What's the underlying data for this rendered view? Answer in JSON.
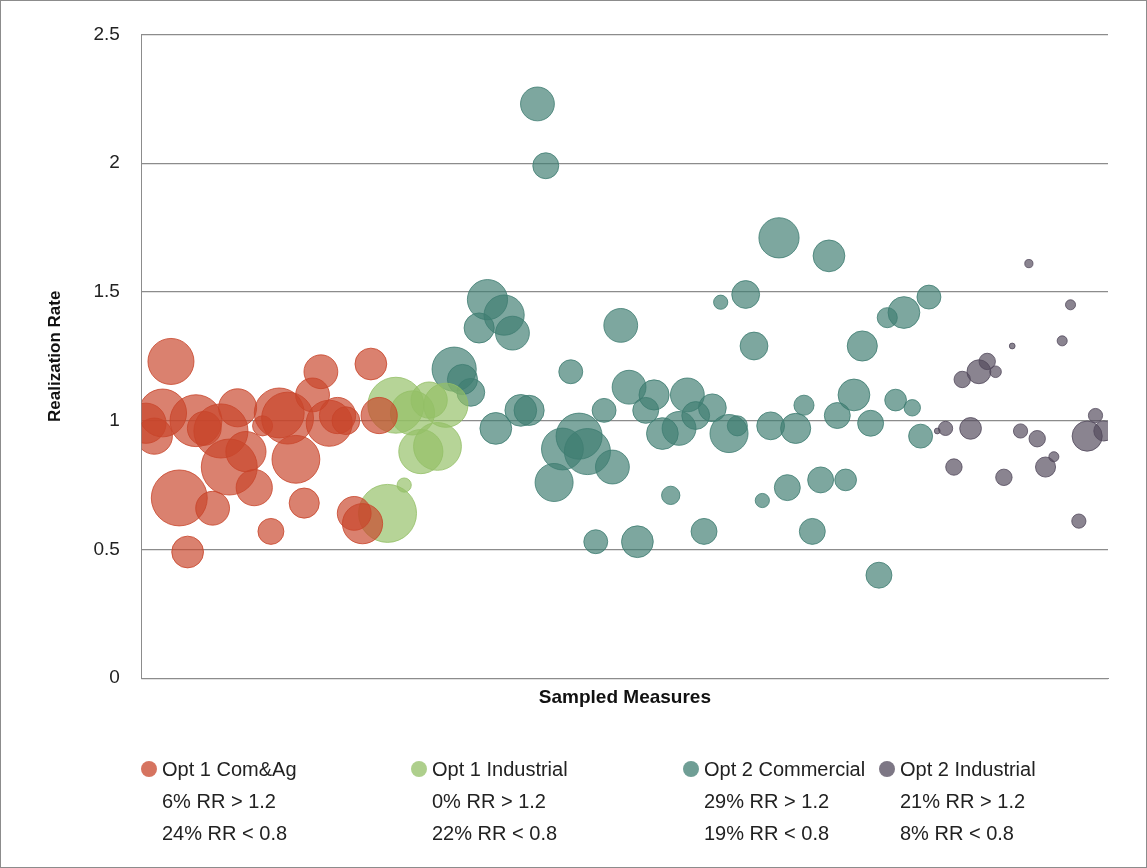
{
  "chart_data": {
    "type": "bubble",
    "xlabel": "Sampled Measures",
    "ylabel": "Realization Rate",
    "categories": [
      null,
      null,
      null,
      null,
      null,
      null,
      null,
      null,
      null,
      null,
      null,
      null,
      null,
      null,
      null,
      null,
      null,
      null,
      null,
      null,
      null,
      null,
      null,
      null,
      null,
      null,
      null,
      null,
      null,
      null,
      null,
      null,
      null,
      null,
      null,
      null,
      null,
      null,
      null,
      null,
      null,
      null,
      null,
      null,
      null,
      null,
      null,
      null,
      null,
      null,
      null,
      null,
      null,
      null,
      null,
      null,
      null,
      null,
      null,
      null,
      null,
      null,
      null,
      null,
      null,
      null,
      null,
      null,
      null,
      null,
      null,
      null,
      null,
      null,
      null,
      null,
      null,
      null,
      null,
      null,
      null,
      null,
      null,
      null,
      null,
      null,
      null,
      null,
      null,
      null,
      null,
      null,
      null,
      null,
      null,
      null,
      null,
      null,
      null,
      null,
      null,
      null,
      null,
      null,
      null,
      null,
      null,
      null,
      null,
      null,
      null,
      null,
      null,
      null,
      null,
      null
    ],
    "ylim": [
      0,
      2.5
    ],
    "yticks": [
      0,
      0.5,
      1,
      1.5,
      2,
      2.5
    ],
    "tick_labels": "y",
    "grid": "y",
    "legend": "bottom",
    "series": [
      {
        "name": "Opt 1 Com&Ag",
        "color": "#c8452b",
        "values": [
          0.99,
          0.94,
          1.03,
          1.23,
          0.7,
          0.49,
          1.0,
          0.97,
          0.66,
          0.96,
          0.82,
          1.05,
          0.88,
          0.74,
          0.98,
          0.57,
          1.03,
          1.01,
          0.85,
          0.68,
          1.1,
          1.19,
          0.99,
          1.02,
          1.0,
          0.64,
          0.6,
          1.22,
          1.02,
          null,
          null,
          null,
          null,
          null,
          null,
          null,
          null,
          null,
          null,
          null,
          null,
          null,
          null,
          null,
          null,
          null,
          null,
          null,
          null,
          null,
          null,
          null,
          null,
          null,
          null,
          null,
          null,
          null,
          null,
          null,
          null,
          null,
          null,
          null,
          null,
          null,
          null,
          null,
          null,
          null,
          null,
          null,
          null,
          null,
          null,
          null,
          null,
          null,
          null,
          null,
          null,
          null,
          null,
          null,
          null,
          null,
          null,
          null,
          null,
          null,
          null,
          null,
          null,
          null,
          null,
          null,
          null,
          null,
          null,
          null,
          null,
          null,
          null,
          null,
          null,
          null,
          null,
          null,
          null,
          null,
          null,
          null,
          null,
          null,
          null,
          null
        ],
        "sizes": [
          0.48,
          0.39,
          0.68,
          0.63,
          0.93,
          0.3,
          0.8,
          0.34,
          0.34,
          0.87,
          0.93,
          0.43,
          0.48,
          0.39,
          0.12,
          0.2,
          0.74,
          0.8,
          0.68,
          0.27,
          0.34,
          0.34,
          0.63,
          0.39,
          0.23,
          0.34,
          0.48,
          0.3,
          0.39,
          null,
          null,
          null,
          null,
          null,
          null,
          null,
          null,
          null,
          null,
          null,
          null,
          null,
          null,
          null,
          null,
          null,
          null,
          null,
          null,
          null,
          null,
          null,
          null,
          null,
          null,
          null,
          null,
          null,
          null,
          null,
          null,
          null,
          null,
          null,
          null,
          null,
          null,
          null,
          null,
          null,
          null,
          null,
          null,
          null,
          null,
          null,
          null,
          null,
          null,
          null,
          null,
          null,
          null,
          null,
          null,
          null,
          null,
          null,
          null,
          null,
          null,
          null,
          null,
          null,
          null,
          null,
          null,
          null,
          null,
          null,
          null,
          null,
          null,
          null,
          null,
          null,
          null,
          null,
          null,
          null,
          null,
          null,
          null,
          null,
          null,
          null
        ]
      },
      {
        "name": "Opt 1 Industrial",
        "color": "#93bf66",
        "values": [
          null,
          null,
          null,
          null,
          null,
          null,
          null,
          null,
          null,
          null,
          null,
          null,
          null,
          null,
          null,
          null,
          null,
          null,
          null,
          null,
          null,
          null,
          null,
          null,
          null,
          null,
          null,
          null,
          null,
          0.64,
          1.06,
          0.75,
          1.03,
          0.88,
          1.08,
          0.9,
          1.06,
          null,
          null,
          null,
          null,
          null,
          null,
          null,
          null,
          null,
          null,
          null,
          null,
          null,
          null,
          null,
          null,
          null,
          null,
          null,
          null,
          null,
          null,
          null,
          null,
          null,
          null,
          null,
          null,
          null,
          null,
          null,
          null,
          null,
          null,
          null,
          null,
          null,
          null,
          null,
          null,
          null,
          null,
          null,
          null,
          null,
          null,
          null,
          null,
          null,
          null,
          null,
          null,
          null,
          null,
          null,
          null,
          null,
          null,
          null,
          null,
          null,
          null,
          null,
          null,
          null,
          null,
          null,
          null,
          null,
          null,
          null,
          null,
          null,
          null,
          null,
          null,
          null,
          null,
          null
        ],
        "sizes": [
          null,
          null,
          null,
          null,
          null,
          null,
          null,
          null,
          null,
          null,
          null,
          null,
          null,
          null,
          null,
          null,
          null,
          null,
          null,
          null,
          null,
          null,
          null,
          null,
          null,
          null,
          null,
          null,
          null,
          1,
          0.93,
          0.06,
          0.58,
          0.58,
          0.39,
          0.68,
          0.58,
          null,
          null,
          null,
          null,
          null,
          null,
          null,
          null,
          null,
          null,
          null,
          null,
          null,
          null,
          null,
          null,
          null,
          null,
          null,
          null,
          null,
          null,
          null,
          null,
          null,
          null,
          null,
          null,
          null,
          null,
          null,
          null,
          null,
          null,
          null,
          null,
          null,
          null,
          null,
          null,
          null,
          null,
          null,
          null,
          null,
          null,
          null,
          null,
          null,
          null,
          null,
          null,
          null,
          null,
          null,
          null,
          null,
          null,
          null,
          null,
          null,
          null,
          null,
          null,
          null,
          null,
          null,
          null,
          null,
          null,
          null,
          null,
          null,
          null,
          null,
          null,
          null,
          null,
          null
        ]
      },
      {
        "name": "Opt 2 Commercial",
        "color": "#3f7d72",
        "values": [
          null,
          null,
          null,
          null,
          null,
          null,
          null,
          null,
          null,
          null,
          null,
          null,
          null,
          null,
          null,
          null,
          null,
          null,
          null,
          null,
          null,
          null,
          null,
          null,
          null,
          null,
          null,
          null,
          null,
          null,
          null,
          null,
          null,
          null,
          null,
          null,
          null,
          1.2,
          1.16,
          1.11,
          1.36,
          1.47,
          0.97,
          1.41,
          1.34,
          1.04,
          1.04,
          2.23,
          1.99,
          0.76,
          0.89,
          1.19,
          0.94,
          0.88,
          0.53,
          1.04,
          0.82,
          1.37,
          1.13,
          0.53,
          1.04,
          1.1,
          0.95,
          0.71,
          0.97,
          1.1,
          1.02,
          0.57,
          1.05,
          1.46,
          0.95,
          0.98,
          1.49,
          1.29,
          0.69,
          0.98,
          1.71,
          0.74,
          0.97,
          1.06,
          0.57,
          0.77,
          1.64,
          1.02,
          0.77,
          1.1,
          1.29,
          0.99,
          0.4,
          1.4,
          1.08,
          1.42,
          1.05,
          0.94,
          1.48,
          null,
          null,
          null,
          null,
          null,
          null,
          null,
          null,
          null,
          null,
          null,
          null,
          null,
          null,
          null,
          null,
          null,
          null,
          null,
          null,
          null
        ],
        "sizes": [
          null,
          null,
          null,
          null,
          null,
          null,
          null,
          null,
          null,
          null,
          null,
          null,
          null,
          null,
          null,
          null,
          null,
          null,
          null,
          null,
          null,
          null,
          null,
          null,
          null,
          null,
          null,
          null,
          null,
          null,
          null,
          null,
          null,
          null,
          null,
          null,
          null,
          0.58,
          0.27,
          0.23,
          0.27,
          0.48,
          0.3,
          0.48,
          0.34,
          0.3,
          0.27,
          0.34,
          0.2,
          0.43,
          0.52,
          0.17,
          0.63,
          0.63,
          0.17,
          0.17,
          0.34,
          0.34,
          0.34,
          0.3,
          0.2,
          0.27,
          0.3,
          0.1,
          0.34,
          0.34,
          0.23,
          0.2,
          0.23,
          0.06,
          0.43,
          0.12,
          0.23,
          0.23,
          0.06,
          0.23,
          0.48,
          0.2,
          0.27,
          0.12,
          0.2,
          0.2,
          0.3,
          0.2,
          0.14,
          0.3,
          0.27,
          0.2,
          0.2,
          0.12,
          0.14,
          0.3,
          0.08,
          0.17,
          0.17,
          null,
          null,
          null,
          null,
          null,
          null,
          null,
          null,
          null,
          null,
          null,
          null,
          null,
          null,
          null,
          null,
          null,
          null,
          null,
          null,
          null
        ]
      },
      {
        "name": "Opt 2 Industrial",
        "color": "#524a5c",
        "values": [
          null,
          null,
          null,
          null,
          null,
          null,
          null,
          null,
          null,
          null,
          null,
          null,
          null,
          null,
          null,
          null,
          null,
          null,
          null,
          null,
          null,
          null,
          null,
          null,
          null,
          null,
          null,
          null,
          null,
          null,
          null,
          null,
          null,
          null,
          null,
          null,
          null,
          null,
          null,
          null,
          null,
          null,
          null,
          null,
          null,
          null,
          null,
          null,
          null,
          null,
          null,
          null,
          null,
          null,
          null,
          null,
          null,
          null,
          null,
          null,
          null,
          null,
          null,
          null,
          null,
          null,
          null,
          null,
          null,
          null,
          null,
          null,
          null,
          null,
          null,
          null,
          null,
          null,
          null,
          null,
          null,
          null,
          null,
          null,
          null,
          null,
          null,
          null,
          null,
          null,
          null,
          null,
          null,
          null,
          null,
          0.96,
          0.97,
          0.82,
          1.16,
          0.97,
          1.19,
          1.23,
          1.19,
          0.78,
          1.29,
          0.96,
          1.61,
          0.93,
          0.82,
          0.86,
          1.31,
          1.45,
          0.61,
          0.94,
          1.02,
          0.96
        ],
        "sizes": [
          null,
          null,
          null,
          null,
          null,
          null,
          null,
          null,
          null,
          null,
          null,
          null,
          null,
          null,
          null,
          null,
          null,
          null,
          null,
          null,
          null,
          null,
          null,
          null,
          null,
          null,
          null,
          null,
          null,
          null,
          null,
          null,
          null,
          null,
          null,
          null,
          null,
          null,
          null,
          null,
          null,
          null,
          null,
          null,
          null,
          null,
          null,
          null,
          null,
          null,
          null,
          null,
          null,
          null,
          null,
          null,
          null,
          null,
          null,
          null,
          null,
          null,
          null,
          null,
          null,
          null,
          null,
          null,
          null,
          null,
          null,
          null,
          null,
          null,
          null,
          null,
          null,
          null,
          null,
          null,
          null,
          null,
          null,
          null,
          null,
          null,
          null,
          null,
          null,
          null,
          null,
          null,
          null,
          null,
          null,
          0.01,
          0.06,
          0.08,
          0.08,
          0.14,
          0.17,
          0.08,
          0.04,
          0.08,
          0.01,
          0.06,
          0.02,
          0.08,
          0.12,
          0.03,
          0.03,
          0.03,
          0.06,
          0.27,
          0.06,
          0.12
        ]
      }
    ],
    "annotations": [
      "6% RR > 1.2",
      "24% RR < 0.8",
      "0% RR > 1.2",
      "22% RR < 0.8",
      "29% RR > 1.2",
      "19% RR < 0.8",
      "21% RR > 1.2",
      "8% RR < 0.8"
    ]
  }
}
